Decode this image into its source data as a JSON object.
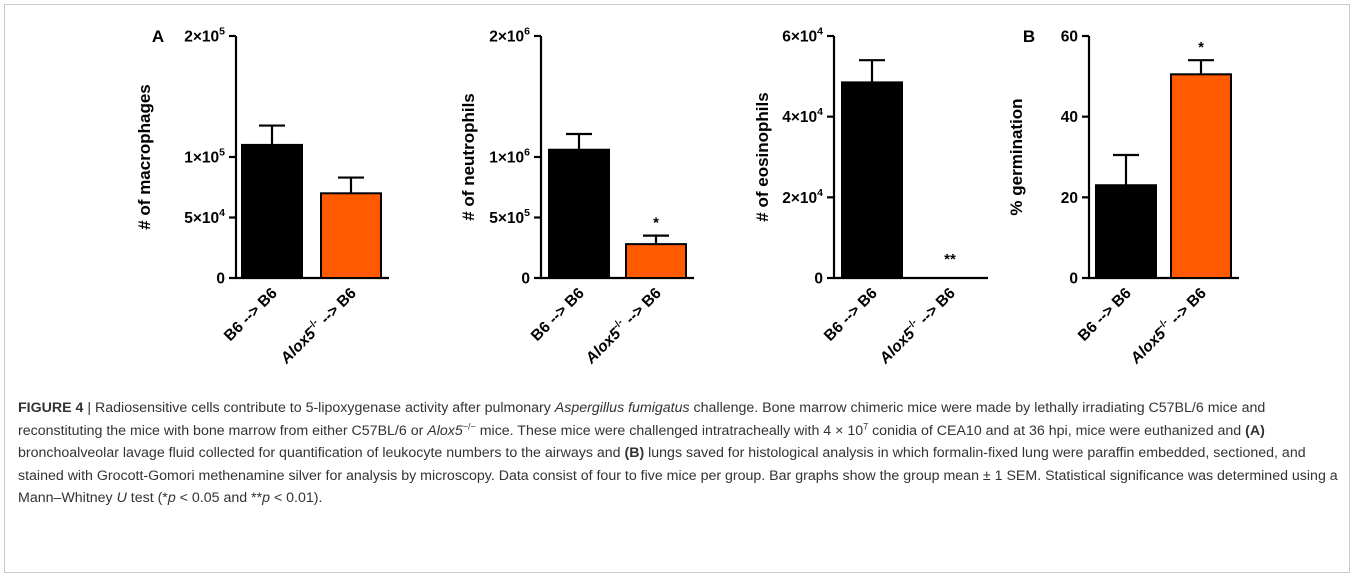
{
  "colors": {
    "b6": "#000000",
    "alox5": "#ff5a00",
    "axis": "#000000"
  },
  "chart_data": [
    {
      "type": "bar",
      "panel_label": "A",
      "ylabel": "# of macrophages",
      "ylim": [
        0,
        200000
      ],
      "yticks": [
        {
          "value": 0,
          "mant": "0",
          "exp": ""
        },
        {
          "value": 50000,
          "mant": "5×10",
          "exp": "4"
        },
        {
          "value": 100000,
          "mant": "1×10",
          "exp": "5"
        },
        {
          "value": 200000,
          "mant": "2×10",
          "exp": "5"
        }
      ],
      "categories": [
        {
          "pre": "B6 --> B6",
          "sup": "",
          "post": ""
        },
        {
          "pre": "Alox5",
          "sup": "-/-",
          "post": " --> B6"
        }
      ],
      "values": [
        110000,
        70000
      ],
      "errors": [
        16000,
        13000
      ],
      "significance": [
        "",
        ""
      ]
    },
    {
      "type": "bar",
      "panel_label": "",
      "ylabel": "# of neutrophils",
      "ylim": [
        0,
        2000000
      ],
      "yticks": [
        {
          "value": 0,
          "mant": "0",
          "exp": ""
        },
        {
          "value": 500000,
          "mant": "5×10",
          "exp": "5"
        },
        {
          "value": 1000000,
          "mant": "1×10",
          "exp": "6"
        },
        {
          "value": 2000000,
          "mant": "2×10",
          "exp": "6"
        }
      ],
      "categories": [
        {
          "pre": "B6 --> B6",
          "sup": "",
          "post": ""
        },
        {
          "pre": "Alox5",
          "sup": "-/-",
          "post": " --> B6"
        }
      ],
      "values": [
        1060000,
        280000
      ],
      "errors": [
        130000,
        70000
      ],
      "significance": [
        "",
        "*"
      ]
    },
    {
      "type": "bar",
      "panel_label": "",
      "ylabel": "# of eosinophils",
      "ylim": [
        0,
        60000
      ],
      "yticks": [
        {
          "value": 0,
          "mant": "0",
          "exp": ""
        },
        {
          "value": 20000,
          "mant": "2×10",
          "exp": "4"
        },
        {
          "value": 40000,
          "mant": "4×10",
          "exp": "4"
        },
        {
          "value": 60000,
          "mant": "6×10",
          "exp": "4"
        }
      ],
      "categories": [
        {
          "pre": "B6 --> B6",
          "sup": "",
          "post": ""
        },
        {
          "pre": "Alox5",
          "sup": "-/-",
          "post": " --> B6"
        }
      ],
      "values": [
        48500,
        0
      ],
      "errors": [
        5500,
        0
      ],
      "significance": [
        "",
        "**"
      ]
    },
    {
      "type": "bar",
      "panel_label": "B",
      "ylabel": "% germination",
      "ylim": [
        0,
        60
      ],
      "yticks": [
        {
          "value": 0,
          "mant": "0",
          "exp": ""
        },
        {
          "value": 20,
          "mant": "20",
          "exp": ""
        },
        {
          "value": 40,
          "mant": "40",
          "exp": ""
        },
        {
          "value": 60,
          "mant": "60",
          "exp": ""
        }
      ],
      "categories": [
        {
          "pre": "B6 --> B6",
          "sup": "",
          "post": ""
        },
        {
          "pre": "Alox5",
          "sup": "-/-",
          "post": " --> B6"
        }
      ],
      "values": [
        23,
        50.5
      ],
      "errors": [
        7.5,
        3.5
      ],
      "significance": [
        "",
        "*"
      ]
    }
  ],
  "caption": {
    "label": "FIGURE 4",
    "sep": " | ",
    "p1": "Radiosensitive cells contribute to 5-lipoxygenase activity after pulmonary ",
    "species": "Aspergillus fumigatus",
    "p2": " challenge. Bone marrow chimeric mice were made by lethally irradiating C57BL/6 mice and reconstituting the mice with bone marrow from either C57BL/6 or ",
    "gene": "Alox5",
    "gene_sup": "−/−",
    "p3": " mice. These mice were challenged intratracheally with 4 × 10",
    "exp": "7",
    "p4": " conidia of CEA10 and at 36 hpi, mice were euthanized and ",
    "ref_a": "(A)",
    "p5": " bronchoalveolar lavage fluid collected for quantification of leukocyte numbers to the airways and ",
    "ref_b": "(B)",
    "p6": " lungs saved for histological analysis in which formalin-fixed lung were paraffin embedded, sectioned, and stained with Grocott-Gomori methenamine silver for analysis by microscopy. Data consist of four to five mice per group. Bar graphs show the group mean ± 1 SEM. Statistical significance was determined using a Mann–Whitney ",
    "u": "U",
    "p7": " test (*",
    "p_sym1": "p",
    "p8": " < 0.05 and **",
    "p_sym2": "p",
    "p9": " < 0.01)."
  }
}
